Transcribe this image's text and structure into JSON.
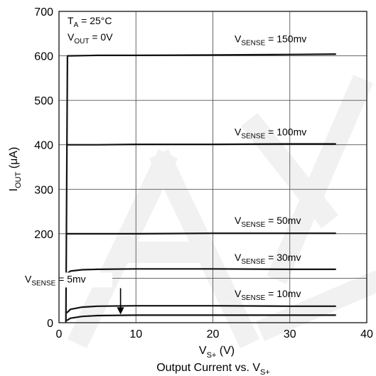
{
  "chart_data": {
    "type": "line",
    "title": "",
    "caption": {
      "main": "Output Current vs. V",
      "sub": "S+"
    },
    "xlabel": {
      "main": "V",
      "sub": "S+",
      "unit": " (V)"
    },
    "ylabel": {
      "main": "I",
      "sub": "OUT",
      "unit": " (μA)"
    },
    "xlim": [
      0,
      40
    ],
    "ylim": [
      0,
      700
    ],
    "xticks": [
      "0",
      "10",
      "20",
      "30",
      "40"
    ],
    "yticks": [
      "0",
      "100",
      "200",
      "300",
      "400",
      "500",
      "600",
      "700"
    ],
    "grid": true,
    "conditions": [
      {
        "main": "T",
        "sub": "A",
        "rest": " = 25°C"
      },
      {
        "main": "V",
        "sub": "OUT",
        "rest": " = 0V"
      }
    ],
    "series": [
      {
        "name": "V_SENSE = 150mv",
        "label": {
          "main": "V",
          "sub": "SENSE",
          "rest": " = 150mv"
        },
        "x": [
          0.9,
          1.1,
          5,
          10,
          20,
          30,
          36
        ],
        "y": [
          0,
          600,
          601,
          601,
          602,
          603,
          604
        ]
      },
      {
        "name": "V_SENSE = 100mv",
        "label": {
          "main": "V",
          "sub": "SENSE",
          "rest": " = 100mv"
        },
        "x": [
          1.0,
          5,
          10,
          20,
          30,
          36
        ],
        "y": [
          400,
          400,
          401,
          401,
          402,
          402
        ]
      },
      {
        "name": "V_SENSE = 50mv",
        "label": {
          "main": "V",
          "sub": "SENSE",
          "rest": " = 50mv"
        },
        "x": [
          1.0,
          5,
          10,
          20,
          30,
          36
        ],
        "y": [
          200,
          200,
          200,
          201,
          201,
          201
        ]
      },
      {
        "name": "V_SENSE = 30mv",
        "label": {
          "main": "V",
          "sub": "SENSE",
          "rest": " = 30mv"
        },
        "x": [
          1.0,
          1.5,
          3,
          5,
          10,
          20,
          30,
          36
        ],
        "y": [
          110,
          116,
          119,
          120,
          121,
          121,
          120,
          120
        ]
      },
      {
        "name": "V_SENSE = 10mv",
        "label": {
          "main": "V",
          "sub": "SENSE",
          "rest": " = 10mv"
        },
        "x": [
          1.0,
          1.5,
          3,
          5,
          10,
          20,
          30,
          36
        ],
        "y": [
          22,
          30,
          35,
          37,
          38,
          38,
          37,
          37
        ]
      },
      {
        "name": "V_SENSE = 5mv",
        "label": {
          "main": "V",
          "sub": "SENSE",
          "rest": " = 5mv"
        },
        "x": [
          1.0,
          1.5,
          3,
          5,
          10,
          20,
          30,
          36
        ],
        "y": [
          5,
          10,
          14,
          16,
          17,
          17,
          17,
          17
        ]
      }
    ],
    "colors": {
      "line": "#111111",
      "grid": "#555555",
      "watermark": "#f1f1f1"
    }
  }
}
